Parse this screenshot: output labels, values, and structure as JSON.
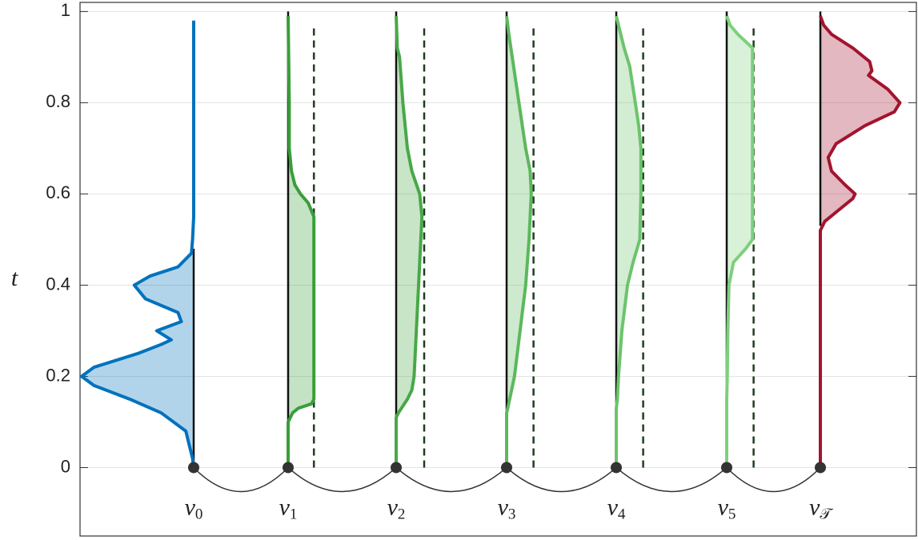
{
  "chart_data": {
    "type": "density",
    "ylabel": "t",
    "ylim": [
      -0.15,
      1.02
    ],
    "yticks": [
      0,
      0.2,
      0.4,
      0.6,
      0.8,
      1
    ],
    "grid": true,
    "series": [
      {
        "label": {
          "main": "v",
          "sub": "0"
        },
        "color": "#0072bd",
        "side": "left",
        "t": [
          0,
          0.02,
          0.05,
          0.08,
          0.12,
          0.15,
          0.18,
          0.2,
          0.22,
          0.25,
          0.27,
          0.28,
          0.3,
          0.32,
          0.34,
          0.37,
          0.4,
          0.42,
          0.44,
          0.47,
          0.5,
          0.55,
          0.98
        ],
        "values": [
          0,
          0.01,
          0.04,
          0.07,
          0.29,
          0.57,
          0.89,
          1.0,
          0.89,
          0.5,
          0.29,
          0.2,
          0.33,
          0.11,
          0.14,
          0.43,
          0.53,
          0.39,
          0.14,
          0.02,
          0.01,
          0,
          0
        ],
        "support": [
          0,
          0.48
        ]
      },
      {
        "label": {
          "main": "v",
          "sub": "1"
        },
        "color": "#3a9e3a",
        "side": "right",
        "t": [
          0,
          0.1,
          0.12,
          0.13,
          0.14,
          0.15,
          0.55,
          0.58,
          0.6,
          0.62,
          0.65,
          0.7,
          0.8,
          0.99
        ],
        "values": [
          0,
          0,
          0.04,
          0.09,
          0.21,
          0.23,
          0.23,
          0.18,
          0.11,
          0.06,
          0.03,
          0.01,
          0.01,
          0
        ],
        "support": [
          0.1,
          1
        ],
        "cap": 0.23,
        "cap_range": [
          0,
          0.97
        ]
      },
      {
        "label": {
          "main": "v",
          "sub": "2"
        },
        "color": "#48a848",
        "side": "right",
        "t": [
          0,
          0.11,
          0.12,
          0.15,
          0.17,
          0.2,
          0.3,
          0.4,
          0.5,
          0.55,
          0.6,
          0.65,
          0.7,
          0.8,
          0.9,
          0.92,
          0.99
        ],
        "values": [
          0,
          0,
          0.02,
          0.1,
          0.14,
          0.16,
          0.18,
          0.2,
          0.22,
          0.23,
          0.21,
          0.14,
          0.1,
          0.06,
          0.03,
          0.01,
          0
        ],
        "support": [
          0.11,
          1
        ],
        "cap": 0.25,
        "cap_range": [
          0,
          0.97
        ]
      },
      {
        "label": {
          "main": "v",
          "sub": "3"
        },
        "color": "#5cb85c",
        "side": "right",
        "t": [
          0,
          0.12,
          0.13,
          0.2,
          0.3,
          0.4,
          0.5,
          0.6,
          0.65,
          0.7,
          0.8,
          0.9,
          0.95,
          0.99
        ],
        "values": [
          0,
          0,
          0.01,
          0.07,
          0.12,
          0.17,
          0.2,
          0.22,
          0.21,
          0.17,
          0.11,
          0.05,
          0.02,
          0
        ],
        "support": [
          0.12,
          1
        ],
        "cap": 0.24,
        "cap_range": [
          0,
          0.97
        ]
      },
      {
        "label": {
          "main": "v",
          "sub": "4"
        },
        "color": "#6cc46c",
        "side": "right",
        "t": [
          0,
          0.13,
          0.15,
          0.2,
          0.3,
          0.4,
          0.45,
          0.5,
          0.6,
          0.7,
          0.75,
          0.8,
          0.88,
          0.92,
          0.95,
          0.99
        ],
        "values": [
          0,
          0,
          0.01,
          0.02,
          0.05,
          0.1,
          0.15,
          0.21,
          0.22,
          0.22,
          0.2,
          0.17,
          0.12,
          0.07,
          0.04,
          0
        ],
        "support": [
          0.14,
          1
        ],
        "cap": 0.24,
        "cap_range": [
          0,
          0.97
        ]
      },
      {
        "label": {
          "main": "v",
          "sub": "5"
        },
        "color": "#7dd07d",
        "side": "right",
        "t": [
          0,
          0.15,
          0.2,
          0.3,
          0.4,
          0.45,
          0.48,
          0.5,
          0.7,
          0.92,
          0.95,
          0.97,
          0.99
        ],
        "values": [
          0,
          0,
          0.005,
          0.01,
          0.02,
          0.06,
          0.17,
          0.23,
          0.23,
          0.23,
          0.1,
          0.03,
          0
        ],
        "support": [
          0.15,
          1
        ],
        "cap": 0.24,
        "cap_range": [
          0,
          0.97
        ]
      },
      {
        "label": {
          "main": "v",
          "sub": "𝒯"
        },
        "color": "#a2142f",
        "side": "right",
        "t": [
          0,
          0.52,
          0.54,
          0.56,
          0.59,
          0.6,
          0.62,
          0.65,
          0.68,
          0.71,
          0.75,
          0.78,
          0.8,
          0.83,
          0.86,
          0.87,
          0.89,
          0.92,
          0.95,
          0.97,
          0.99
        ],
        "values": [
          0,
          0,
          0.04,
          0.14,
          0.29,
          0.31,
          0.22,
          0.1,
          0.07,
          0.14,
          0.4,
          0.66,
          0.71,
          0.6,
          0.43,
          0.46,
          0.44,
          0.29,
          0.1,
          0.03,
          0
        ],
        "support": [
          0.53,
          1
        ]
      }
    ]
  }
}
